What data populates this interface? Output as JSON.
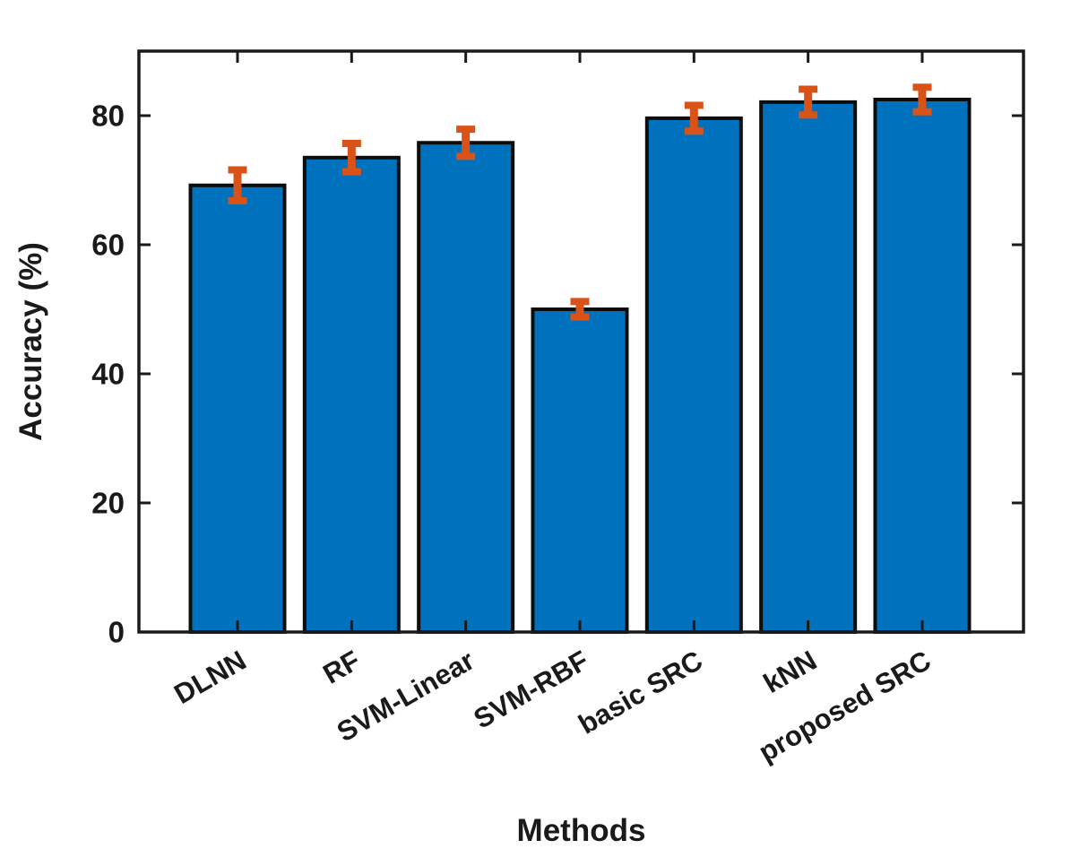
{
  "figure": {
    "background": "#ffffff"
  },
  "chart_data": {
    "type": "bar",
    "title": "",
    "xlabel": "Methods",
    "ylabel": "Accuracy (%)",
    "categories": [
      "DLNN",
      "RF",
      "SVM-Linear",
      "SVM-RBF",
      "basic SRC",
      "kNN",
      "proposed SRC"
    ],
    "values": [
      69.2,
      73.5,
      75.8,
      50.0,
      79.6,
      82.1,
      82.5
    ],
    "errors": [
      2.4,
      2.2,
      2.1,
      1.2,
      2.0,
      2.0,
      1.9
    ],
    "ylim": [
      0,
      90
    ],
    "yticks": [
      0,
      20,
      40,
      60,
      80
    ],
    "ytick_labels": [
      "0",
      "20",
      "40",
      "60",
      "80"
    ],
    "xtick_rotation_deg": -30,
    "grid": false,
    "legend": null,
    "box": true,
    "tick_direction": "in",
    "colors": {
      "bar_fill": "#0072BD",
      "bar_edge": "#0d0d0d",
      "error_bar": "#D95319",
      "axis": "#1a1a1a",
      "text": "#1a1a1a",
      "background": "#ffffff"
    }
  }
}
